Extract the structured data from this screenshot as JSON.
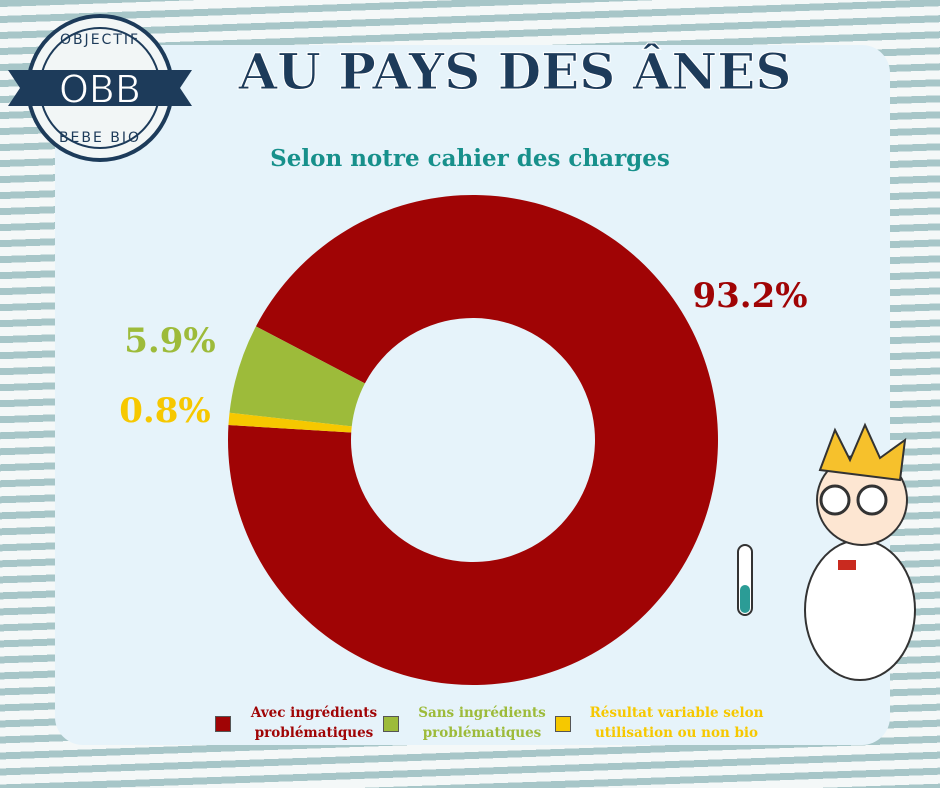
{
  "logo": {
    "top": "OBJECTIF",
    "center": "OBB",
    "bottom": "BEBE BIO"
  },
  "chart_data": {
    "type": "pie",
    "title": "AU PAYS DES ÂNES",
    "subtitle": "Selon notre cahier des charges",
    "categories": [
      "Avec ingrédients problématiques",
      "Sans ingrédients problématiques",
      "Résultat variable selon utilisation ou non bio"
    ],
    "values": [
      93.2,
      5.9,
      0.8
    ],
    "value_labels": [
      "93.2%",
      "5.9%",
      "0.8%"
    ],
    "colors": [
      "#a00405",
      "#9dbb3a",
      "#f6c800"
    ]
  }
}
